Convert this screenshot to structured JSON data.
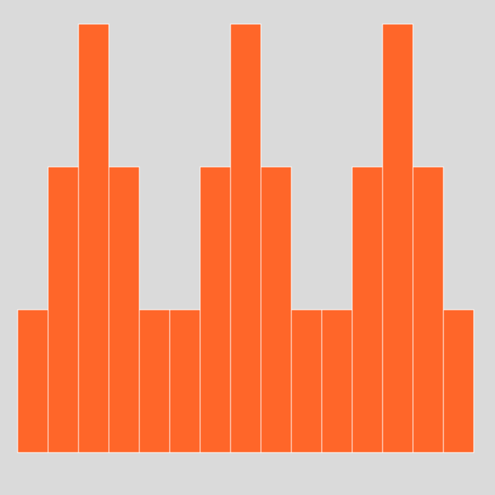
{
  "chart_data": {
    "type": "bar",
    "values": [
      1,
      2,
      3,
      2,
      1,
      1,
      2,
      3,
      2,
      1,
      1,
      2,
      3,
      2,
      1
    ],
    "ylim": [
      0,
      3
    ],
    "title": "",
    "xlabel": "",
    "ylabel": "",
    "grid": false,
    "legend": "none",
    "colors": {
      "background": "#dadada",
      "bar": "#ff6629",
      "bar_border": "#ffffff"
    }
  }
}
